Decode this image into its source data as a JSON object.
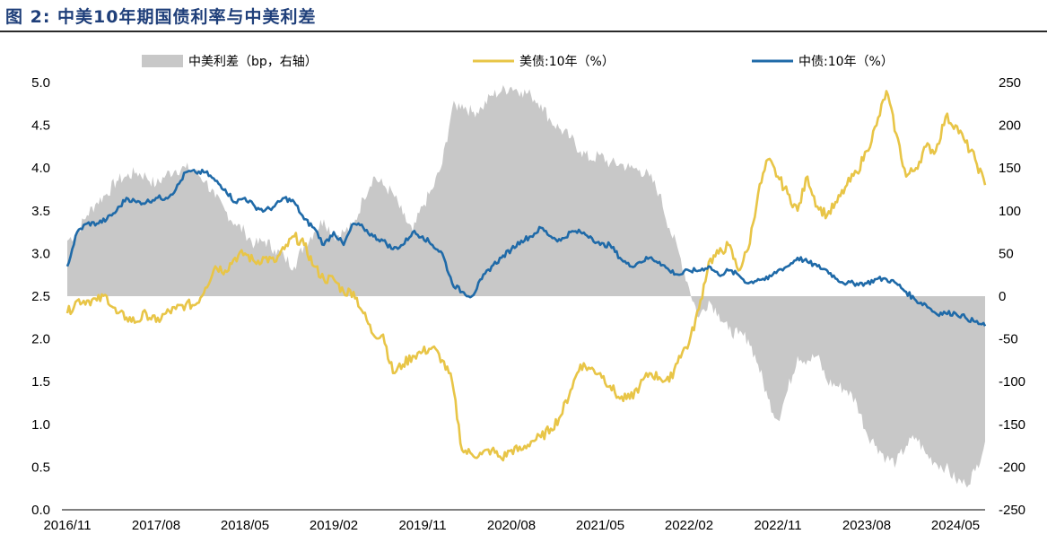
{
  "figure": {
    "title": "图 2: 中美10年期国债利率与中美利差"
  },
  "chart_data": {
    "type": "line",
    "title": "图 2: 中美10年期国债利率与中美利差",
    "x_tick_labels": [
      "2016/11",
      "2017/08",
      "2018/05",
      "2019/02",
      "2019/11",
      "2020/08",
      "2021/05",
      "2022/02",
      "2022/11",
      "2023/08",
      "2024/05"
    ],
    "x_range": [
      "2016/11",
      "2024/08"
    ],
    "y_left": {
      "range": [
        0.0,
        5.0
      ],
      "ticks": [
        "0.0",
        "0.5",
        "1.0",
        "1.5",
        "2.0",
        "2.5",
        "3.0",
        "3.5",
        "4.0",
        "4.5",
        "5.0"
      ]
    },
    "y_right": {
      "range": [
        -250,
        250
      ],
      "ticks": [
        "-250",
        "-200",
        "-150",
        "-100",
        "-50",
        "0",
        "50",
        "100",
        "150",
        "200",
        "250"
      ]
    },
    "legend_position": "top",
    "series": [
      {
        "name": "中美利差（bp，右轴）",
        "type": "area",
        "axis": "right",
        "color": "#c8c8c8",
        "x": [
          "2016-11",
          "2016-12",
          "2017-01",
          "2017-02",
          "2017-03",
          "2017-04",
          "2017-05",
          "2017-06",
          "2017-07",
          "2017-08",
          "2017-09",
          "2017-10",
          "2017-11",
          "2017-12",
          "2018-01",
          "2018-02",
          "2018-03",
          "2018-04",
          "2018-05",
          "2018-06",
          "2018-07",
          "2018-08",
          "2018-09",
          "2018-10",
          "2018-11",
          "2018-12",
          "2019-01",
          "2019-02",
          "2019-03",
          "2019-04",
          "2019-05",
          "2019-06",
          "2019-07",
          "2019-08",
          "2019-09",
          "2019-10",
          "2019-11",
          "2019-12",
          "2020-01",
          "2020-02",
          "2020-03",
          "2020-04",
          "2020-05",
          "2020-06",
          "2020-07",
          "2020-08",
          "2020-09",
          "2020-10",
          "2020-11",
          "2020-12",
          "2021-01",
          "2021-02",
          "2021-03",
          "2021-04",
          "2021-05",
          "2021-06",
          "2021-07",
          "2021-08",
          "2021-09",
          "2021-10",
          "2021-11",
          "2021-12",
          "2022-01",
          "2022-02",
          "2022-03",
          "2022-04",
          "2022-05",
          "2022-06",
          "2022-07",
          "2022-08",
          "2022-09",
          "2022-10",
          "2022-11",
          "2022-12",
          "2023-01",
          "2023-02",
          "2023-03",
          "2023-04",
          "2023-05",
          "2023-06",
          "2023-07",
          "2023-08",
          "2023-09",
          "2023-10",
          "2023-11",
          "2023-12",
          "2024-01",
          "2024-02",
          "2024-03",
          "2024-04",
          "2024-05",
          "2024-06",
          "2024-07",
          "2024-08"
        ],
        "values": [
          65,
          75,
          95,
          110,
          120,
          135,
          140,
          145,
          140,
          130,
          142,
          148,
          150,
          145,
          135,
          115,
          100,
          85,
          75,
          60,
          65,
          55,
          45,
          35,
          60,
          75,
          90,
          70,
          75,
          82,
          115,
          140,
          130,
          120,
          95,
          75,
          105,
          125,
          155,
          220,
          225,
          215,
          220,
          235,
          240,
          245,
          240,
          235,
          225,
          205,
          195,
          185,
          170,
          160,
          165,
          155,
          155,
          150,
          148,
          140,
          120,
          80,
          50,
          10,
          -25,
          -5,
          -20,
          -40,
          -45,
          -50,
          -80,
          -120,
          -145,
          -110,
          -70,
          -75,
          -70,
          -100,
          -105,
          -110,
          -125,
          -160,
          -175,
          -190,
          -195,
          -175,
          -165,
          -185,
          -195,
          -200,
          -215,
          -220,
          -205,
          -170
        ]
      },
      {
        "name": "美债:10年（%）",
        "type": "line",
        "axis": "left",
        "color": "#e8c547",
        "x": [
          "2016-11",
          "2016-12",
          "2017-01",
          "2017-02",
          "2017-03",
          "2017-04",
          "2017-05",
          "2017-06",
          "2017-07",
          "2017-08",
          "2017-09",
          "2017-10",
          "2017-11",
          "2017-12",
          "2018-01",
          "2018-02",
          "2018-03",
          "2018-04",
          "2018-05",
          "2018-06",
          "2018-07",
          "2018-08",
          "2018-09",
          "2018-10",
          "2018-11",
          "2018-12",
          "2019-01",
          "2019-02",
          "2019-03",
          "2019-04",
          "2019-05",
          "2019-06",
          "2019-07",
          "2019-08",
          "2019-09",
          "2019-10",
          "2019-11",
          "2019-12",
          "2020-01",
          "2020-02",
          "2020-03",
          "2020-04",
          "2020-05",
          "2020-06",
          "2020-07",
          "2020-08",
          "2020-09",
          "2020-10",
          "2020-11",
          "2020-12",
          "2021-01",
          "2021-02",
          "2021-03",
          "2021-04",
          "2021-05",
          "2021-06",
          "2021-07",
          "2021-08",
          "2021-09",
          "2021-10",
          "2021-11",
          "2021-12",
          "2022-01",
          "2022-02",
          "2022-03",
          "2022-04",
          "2022-05",
          "2022-06",
          "2022-07",
          "2022-08",
          "2022-09",
          "2022-10",
          "2022-11",
          "2022-12",
          "2023-01",
          "2023-02",
          "2023-03",
          "2023-04",
          "2023-05",
          "2023-06",
          "2023-07",
          "2023-08",
          "2023-09",
          "2023-10",
          "2023-11",
          "2023-12",
          "2024-01",
          "2024-02",
          "2024-03",
          "2024-04",
          "2024-05",
          "2024-06",
          "2024-07",
          "2024-08"
        ],
        "values": [
          2.3,
          2.45,
          2.45,
          2.45,
          2.5,
          2.3,
          2.25,
          2.2,
          2.3,
          2.2,
          2.3,
          2.35,
          2.4,
          2.4,
          2.6,
          2.85,
          2.8,
          2.95,
          3.0,
          2.9,
          2.95,
          2.9,
          3.05,
          3.2,
          3.1,
          2.85,
          2.7,
          2.7,
          2.55,
          2.55,
          2.3,
          2.05,
          2.05,
          1.6,
          1.7,
          1.8,
          1.85,
          1.9,
          1.75,
          1.5,
          0.7,
          0.65,
          0.65,
          0.7,
          0.6,
          0.7,
          0.7,
          0.8,
          0.85,
          0.95,
          1.1,
          1.4,
          1.7,
          1.65,
          1.6,
          1.45,
          1.3,
          1.3,
          1.45,
          1.6,
          1.55,
          1.5,
          1.8,
          1.95,
          2.35,
          2.9,
          3.0,
          3.1,
          2.8,
          3.05,
          3.7,
          4.1,
          3.9,
          3.7,
          3.5,
          3.9,
          3.55,
          3.45,
          3.6,
          3.8,
          3.95,
          4.2,
          4.5,
          4.9,
          4.4,
          3.9,
          4.0,
          4.25,
          4.2,
          4.6,
          4.5,
          4.3,
          4.1,
          3.8
        ]
      },
      {
        "name": "中债:10年（%）",
        "type": "line",
        "axis": "left",
        "color": "#1f6aa8",
        "x": [
          "2016-11",
          "2016-12",
          "2017-01",
          "2017-02",
          "2017-03",
          "2017-04",
          "2017-05",
          "2017-06",
          "2017-07",
          "2017-08",
          "2017-09",
          "2017-10",
          "2017-11",
          "2017-12",
          "2018-01",
          "2018-02",
          "2018-03",
          "2018-04",
          "2018-05",
          "2018-06",
          "2018-07",
          "2018-08",
          "2018-09",
          "2018-10",
          "2018-11",
          "2018-12",
          "2019-01",
          "2019-02",
          "2019-03",
          "2019-04",
          "2019-05",
          "2019-06",
          "2019-07",
          "2019-08",
          "2019-09",
          "2019-10",
          "2019-11",
          "2019-12",
          "2020-01",
          "2020-02",
          "2020-03",
          "2020-04",
          "2020-05",
          "2020-06",
          "2020-07",
          "2020-08",
          "2020-09",
          "2020-10",
          "2020-11",
          "2020-12",
          "2021-01",
          "2021-02",
          "2021-03",
          "2021-04",
          "2021-05",
          "2021-06",
          "2021-07",
          "2021-08",
          "2021-09",
          "2021-10",
          "2021-11",
          "2021-12",
          "2022-01",
          "2022-02",
          "2022-03",
          "2022-04",
          "2022-05",
          "2022-06",
          "2022-07",
          "2022-08",
          "2022-09",
          "2022-10",
          "2022-11",
          "2022-12",
          "2023-01",
          "2023-02",
          "2023-03",
          "2023-04",
          "2023-05",
          "2023-06",
          "2023-07",
          "2023-08",
          "2023-09",
          "2023-10",
          "2023-11",
          "2023-12",
          "2024-01",
          "2024-02",
          "2024-03",
          "2024-04",
          "2024-05",
          "2024-06",
          "2024-07",
          "2024-08"
        ],
        "values": [
          2.85,
          3.25,
          3.35,
          3.35,
          3.4,
          3.5,
          3.65,
          3.6,
          3.6,
          3.65,
          3.65,
          3.75,
          3.95,
          3.95,
          3.95,
          3.85,
          3.75,
          3.6,
          3.65,
          3.55,
          3.5,
          3.55,
          3.65,
          3.6,
          3.4,
          3.3,
          3.1,
          3.25,
          3.1,
          3.35,
          3.3,
          3.2,
          3.15,
          3.05,
          3.1,
          3.25,
          3.2,
          3.1,
          3.0,
          2.65,
          2.55,
          2.5,
          2.7,
          2.85,
          2.95,
          3.05,
          3.15,
          3.2,
          3.3,
          3.2,
          3.15,
          3.25,
          3.25,
          3.2,
          3.1,
          3.1,
          2.95,
          2.85,
          2.9,
          2.95,
          2.9,
          2.8,
          2.75,
          2.8,
          2.8,
          2.85,
          2.75,
          2.8,
          2.75,
          2.65,
          2.7,
          2.7,
          2.8,
          2.85,
          2.95,
          2.9,
          2.85,
          2.8,
          2.7,
          2.65,
          2.65,
          2.65,
          2.7,
          2.7,
          2.65,
          2.55,
          2.45,
          2.4,
          2.3,
          2.3,
          2.3,
          2.25,
          2.2,
          2.15
        ]
      }
    ]
  }
}
